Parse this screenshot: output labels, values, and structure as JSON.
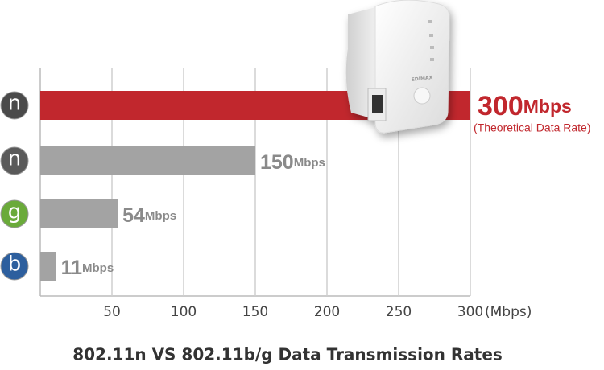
{
  "chart_data": {
    "type": "bar",
    "orientation": "horizontal",
    "title": "802.11n VS 802.11b/g Data Transmission Rates",
    "categories": [
      "n",
      "n",
      "g",
      "b"
    ],
    "icon_colors": [
      "#4a4a4a",
      "#5a5a5a",
      "#6aaa3a",
      "#2d5f9e"
    ],
    "values": [
      300,
      150,
      54,
      11
    ],
    "value_labels": [
      "300Mbps",
      "150Mbps",
      "54Mbps",
      "11Mbps"
    ],
    "colors": [
      "#c1272d",
      "#a3a3a3",
      "#a3a3a3",
      "#a3a3a3"
    ],
    "label_colors": [
      "#c1272d",
      "#8a8a8a",
      "#8a8a8a",
      "#8a8a8a"
    ],
    "annotation": "(Theoretical Data Rate)",
    "xlabel": "(Mbps)",
    "xlim": [
      0,
      300
    ],
    "xticks": [
      50,
      100,
      150,
      200,
      250,
      300
    ],
    "grid": true,
    "device_label": "EDIMAX"
  }
}
